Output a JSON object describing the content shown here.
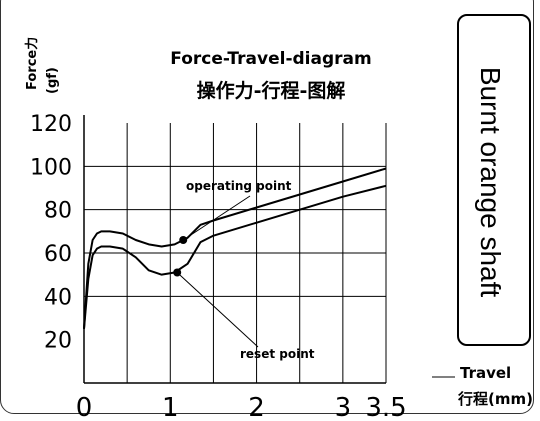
{
  "chart_data": {
    "type": "line",
    "title": "Force-Travel-diagram",
    "subtitle": "操作力-行程-图解",
    "ylabel": "Force力",
    "yunit": "(gf)",
    "xlabel": "Travel",
    "xlabel_cn": "行程(mm)",
    "xlim": [
      0,
      3.5
    ],
    "ylim": [
      0,
      120
    ],
    "xticks": [
      {
        "value": 0,
        "label": "0"
      },
      {
        "value": 1,
        "label": "1"
      },
      {
        "value": 2,
        "label": "2"
      },
      {
        "value": 3,
        "label": "3"
      },
      {
        "value": 3.5,
        "label": "3.5"
      }
    ],
    "yticks": [
      {
        "value": 20,
        "label": "20"
      },
      {
        "value": 40,
        "label": "40"
      },
      {
        "value": 60,
        "label": "60"
      },
      {
        "value": 80,
        "label": "80"
      },
      {
        "value": 100,
        "label": "100"
      },
      {
        "value": 120,
        "label": "120"
      }
    ],
    "grid": true,
    "grid_x": [
      0.5,
      1,
      1.5,
      2,
      2.5,
      3,
      3.5
    ],
    "grid_y": [
      40,
      60,
      80,
      100
    ],
    "series": [
      {
        "x": [
          0,
          0.05,
          0.1,
          0.15,
          0.2,
          0.3,
          0.45,
          0.6,
          0.75,
          0.9,
          1.05,
          1.2,
          1.35,
          1.5,
          2.0,
          2.5,
          3.0,
          3.5
        ],
        "y": [
          25,
          55,
          66,
          69,
          70,
          70,
          69,
          66,
          64,
          63,
          64,
          67,
          73,
          75,
          81,
          87,
          93,
          99
        ]
      },
      {
        "x": [
          0,
          0.05,
          0.1,
          0.15,
          0.2,
          0.3,
          0.45,
          0.6,
          0.75,
          0.9,
          1.05,
          1.2,
          1.35,
          1.5,
          2.0,
          2.5,
          3.0,
          3.5
        ],
        "y": [
          25,
          48,
          59,
          62,
          63,
          63,
          62,
          58,
          52,
          50,
          51,
          55,
          65,
          68,
          74,
          80,
          86,
          91
        ]
      }
    ],
    "annotations": [
      {
        "label": "operating point",
        "x": 1.15,
        "y": 66
      },
      {
        "label": "reset point",
        "x": 1.08,
        "y": 51
      }
    ]
  },
  "side_label": "Burnt orange shaft"
}
